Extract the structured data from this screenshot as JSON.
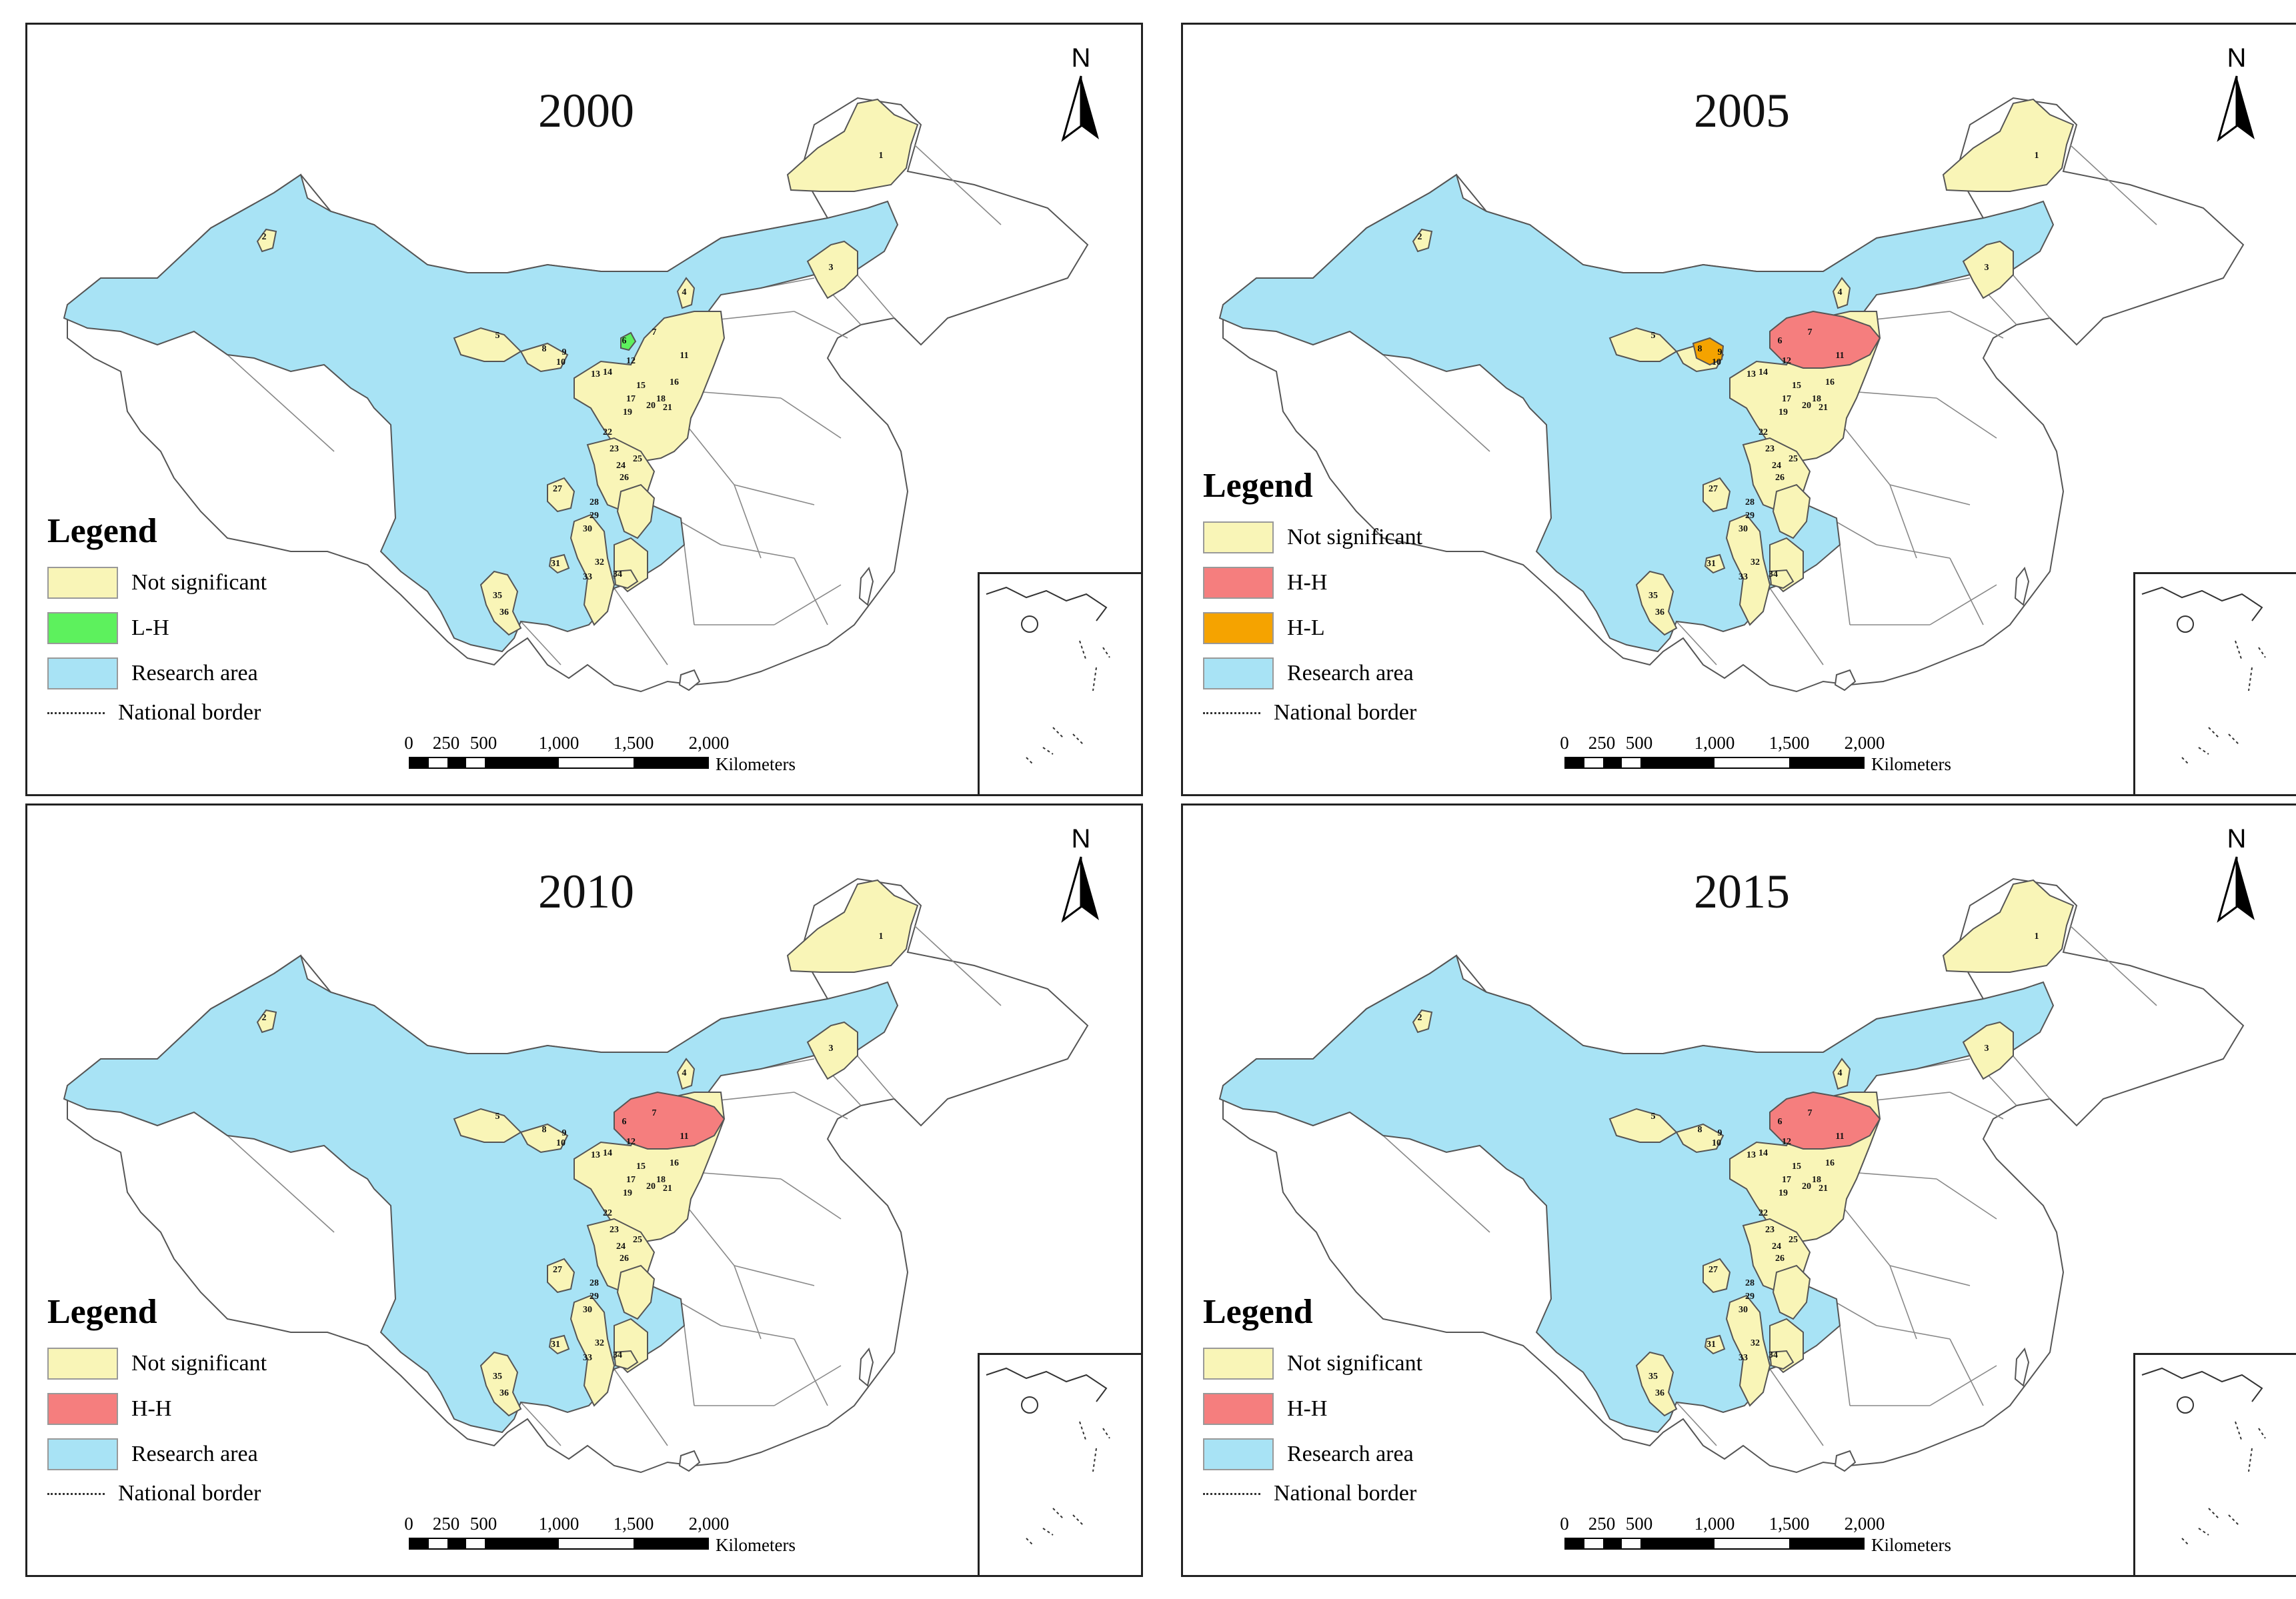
{
  "figure": {
    "panels": [
      {
        "year": "2000",
        "legend": [
          {
            "label": "Not significant",
            "color": "#f9f5b7"
          },
          {
            "label": "L-H",
            "color": "#5df15d"
          },
          {
            "label": "Research area",
            "color": "#a8e3f5"
          }
        ],
        "h_h_cities": [],
        "h_l_cities": [],
        "l_h_cities": [
          "6"
        ]
      },
      {
        "year": "2005",
        "legend": [
          {
            "label": "Not significant",
            "color": "#f9f5b7"
          },
          {
            "label": "H-H",
            "color": "#f57e7e"
          },
          {
            "label": "H-L",
            "color": "#f5a300"
          },
          {
            "label": "Research area",
            "color": "#a8e3f5"
          }
        ],
        "h_h_cities": [
          "7"
        ],
        "h_l_cities": [
          "8"
        ],
        "l_h_cities": []
      },
      {
        "year": "2010",
        "legend": [
          {
            "label": "Not significant",
            "color": "#f9f5b7"
          },
          {
            "label": "H-H",
            "color": "#f57e7e"
          },
          {
            "label": "Research area",
            "color": "#a8e3f5"
          }
        ],
        "h_h_cities": [
          "7"
        ],
        "h_l_cities": [],
        "l_h_cities": []
      },
      {
        "year": "2015",
        "legend": [
          {
            "label": "Not significant",
            "color": "#f9f5b7"
          },
          {
            "label": "H-H",
            "color": "#f57e7e"
          },
          {
            "label": "Research area",
            "color": "#a8e3f5"
          }
        ],
        "h_h_cities": [
          "7"
        ],
        "h_l_cities": [],
        "l_h_cities": []
      }
    ],
    "common": {
      "legend_title": "Legend",
      "border_label": "National border",
      "north_label": "N",
      "scale_ticks": [
        "0",
        "250",
        "500",
        "1,000",
        "1,500",
        "2,000"
      ],
      "scale_unit": "Kilometers",
      "city_labels": [
        "1",
        "2",
        "3",
        "4",
        "5",
        "6",
        "7",
        "8",
        "9",
        "10",
        "11",
        "12",
        "13",
        "14",
        "15",
        "16",
        "17",
        "18",
        "19",
        "20",
        "21",
        "22",
        "23",
        "24",
        "25",
        "26",
        "27",
        "28",
        "29",
        "30",
        "31",
        "32",
        "33",
        "34",
        "35",
        "36"
      ]
    },
    "colors": {
      "not_significant": "#f9f5b7",
      "h_h": "#f57e7e",
      "h_l": "#f5a300",
      "l_h": "#5df15d",
      "research_area": "#a8e3f5",
      "background_region": "#ffffff",
      "outline": "#555555"
    }
  }
}
